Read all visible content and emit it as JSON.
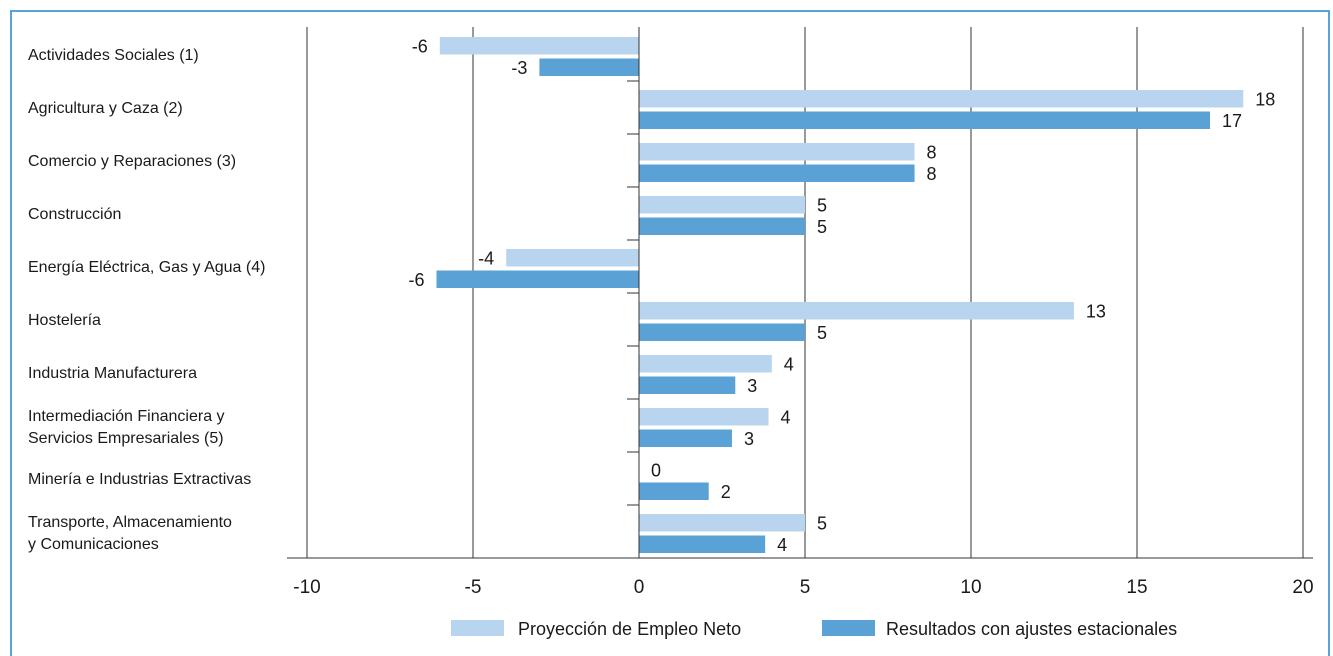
{
  "chart_data": {
    "type": "bar",
    "orientation": "horizontal",
    "categories": [
      [
        "Actividades Sociales (1)"
      ],
      [
        "Agricultura y Caza (2)"
      ],
      [
        "Comercio y Reparaciones (3)"
      ],
      [
        "Construcción"
      ],
      [
        "Energía Eléctrica, Gas y Agua (4)"
      ],
      [
        "Hostelería"
      ],
      [
        "Industria Manufacturera"
      ],
      [
        "Intermediación Financiera y",
        "Servicios Empresariales (5)"
      ],
      [
        "Minería e Industrias Extractivas"
      ],
      [
        "Transporte, Almacenamiento",
        "y Comunicaciones"
      ]
    ],
    "series": [
      {
        "name": "Proyección de Empleo Neto",
        "color": "#b9d4ee",
        "values": [
          -6,
          18.2,
          8.3,
          5,
          -4,
          13.1,
          4,
          3.9,
          0,
          5
        ],
        "labels": [
          "-6",
          "18",
          "8",
          "5",
          "-4",
          "13",
          "4",
          "4",
          "0",
          "5"
        ]
      },
      {
        "name": "Resultados con ajustes estacionales",
        "color": "#5aa2d5",
        "values": [
          -3,
          17.2,
          8.3,
          5,
          -6.1,
          5,
          2.9,
          2.8,
          2.1,
          3.8
        ],
        "labels": [
          "-3",
          "17",
          "8",
          "5",
          "-6",
          "5",
          "3",
          "3",
          "2",
          "4"
        ]
      }
    ],
    "xlim": [
      -10,
      20
    ],
    "xticks": [
      "-10",
      "-5",
      "0",
      "5",
      "10",
      "15",
      "20"
    ],
    "grid": true,
    "legend_position": "bottom"
  }
}
